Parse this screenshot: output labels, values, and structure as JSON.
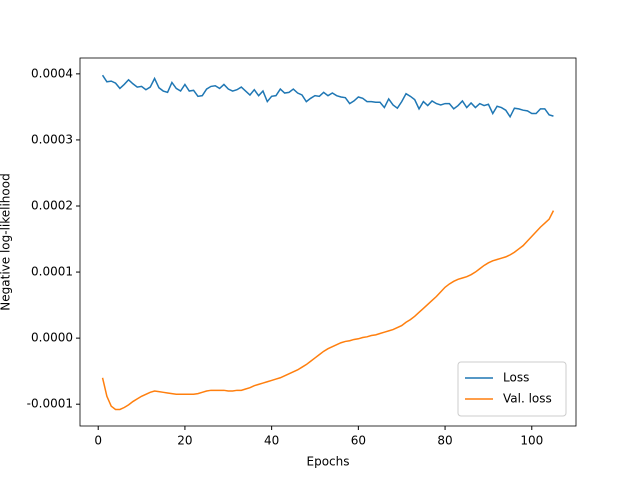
{
  "chart_data": {
    "type": "line",
    "xlabel": "Epochs",
    "ylabel": "Negative log-likelihood",
    "x": [
      1,
      2,
      3,
      4,
      5,
      6,
      7,
      8,
      9,
      10,
      11,
      12,
      13,
      14,
      15,
      16,
      17,
      18,
      19,
      20,
      21,
      22,
      23,
      24,
      25,
      26,
      27,
      28,
      29,
      30,
      31,
      32,
      33,
      34,
      35,
      36,
      37,
      38,
      39,
      40,
      41,
      42,
      43,
      44,
      45,
      46,
      47,
      48,
      49,
      50,
      51,
      52,
      53,
      54,
      55,
      56,
      57,
      58,
      59,
      60,
      61,
      62,
      63,
      64,
      65,
      66,
      67,
      68,
      69,
      70,
      71,
      72,
      73,
      74,
      75,
      76,
      77,
      78,
      79,
      80,
      81,
      82,
      83,
      84,
      85,
      86,
      87,
      88,
      89,
      90,
      91,
      92,
      93,
      94,
      95,
      96,
      97,
      98,
      99,
      100,
      101,
      102,
      103,
      104,
      105
    ],
    "series": [
      {
        "name": "Loss",
        "color": "#1f77b4",
        "values": [
          0.000398,
          0.000388,
          0.000389,
          0.000386,
          0.000378,
          0.000384,
          0.000391,
          0.000385,
          0.00038,
          0.000381,
          0.000376,
          0.00038,
          0.000393,
          0.000379,
          0.000374,
          0.000372,
          0.000387,
          0.000378,
          0.000374,
          0.000384,
          0.000374,
          0.000375,
          0.000366,
          0.000367,
          0.000377,
          0.000381,
          0.000382,
          0.000378,
          0.000384,
          0.000377,
          0.000374,
          0.000376,
          0.00038,
          0.000374,
          0.000368,
          0.000376,
          0.000367,
          0.000374,
          0.000358,
          0.000366,
          0.000367,
          0.000377,
          0.000371,
          0.000372,
          0.000377,
          0.000371,
          0.000368,
          0.000358,
          0.000363,
          0.000367,
          0.000366,
          0.000372,
          0.000367,
          0.000371,
          0.000367,
          0.000365,
          0.000364,
          0.000355,
          0.000359,
          0.000365,
          0.000363,
          0.000358,
          0.000358,
          0.000357,
          0.000357,
          0.000349,
          0.000362,
          0.000353,
          0.000348,
          0.000358,
          0.00037,
          0.000366,
          0.000361,
          0.000347,
          0.000358,
          0.000352,
          0.000359,
          0.000355,
          0.000353,
          0.000355,
          0.000355,
          0.000347,
          0.000352,
          0.000359,
          0.000349,
          0.000356,
          0.000349,
          0.000355,
          0.000352,
          0.000354,
          0.00034,
          0.000351,
          0.000349,
          0.000345,
          0.000335,
          0.000348,
          0.000347,
          0.000345,
          0.000344,
          0.00034,
          0.00034,
          0.000347,
          0.000347,
          0.000338,
          0.000336
        ]
      },
      {
        "name": "Val. loss",
        "color": "#ff7f0e",
        "values": [
          -6e-05,
          -8.8e-05,
          -0.000103,
          -0.000108,
          -0.000108,
          -0.000105,
          -0.000101,
          -9.6e-05,
          -9.2e-05,
          -8.8e-05,
          -8.5e-05,
          -8.2e-05,
          -8e-05,
          -8.1e-05,
          -8.2e-05,
          -8.3e-05,
          -8.4e-05,
          -8.5e-05,
          -8.5e-05,
          -8.5e-05,
          -8.5e-05,
          -8.5e-05,
          -8.4e-05,
          -8.2e-05,
          -8e-05,
          -7.9e-05,
          -7.9e-05,
          -7.9e-05,
          -7.9e-05,
          -8e-05,
          -8e-05,
          -7.9e-05,
          -7.9e-05,
          -7.7e-05,
          -7.5e-05,
          -7.2e-05,
          -7e-05,
          -6.8e-05,
          -6.6e-05,
          -6.4e-05,
          -6.2e-05,
          -6e-05,
          -5.7e-05,
          -5.4e-05,
          -5.1e-05,
          -4.8e-05,
          -4.4e-05,
          -4e-05,
          -3.5e-05,
          -3e-05,
          -2.5e-05,
          -2e-05,
          -1.6e-05,
          -1.3e-05,
          -1e-05,
          -7e-06,
          -5e-06,
          -4e-06,
          -2e-06,
          -1e-06,
          1e-06,
          2e-06,
          4e-06,
          5e-06,
          7e-06,
          9e-06,
          1.1e-05,
          1.3e-05,
          1.6e-05,
          1.9e-05,
          2.4e-05,
          2.8e-05,
          3.3e-05,
          3.9e-05,
          4.5e-05,
          5.1e-05,
          5.7e-05,
          6.3e-05,
          7e-05,
          7.7e-05,
          8.2e-05,
          8.6e-05,
          8.9e-05,
          9.1e-05,
          9.3e-05,
          9.6e-05,
          0.0001,
          0.000105,
          0.00011,
          0.000114,
          0.000117,
          0.000119,
          0.000121,
          0.000123,
          0.000126,
          0.00013,
          0.000135,
          0.00014,
          0.000147,
          0.000154,
          0.000161,
          0.000168,
          0.000174,
          0.00018,
          0.000193
        ]
      }
    ],
    "xlim": [
      -4.2,
      110.2
    ],
    "xticks": [
      0,
      20,
      40,
      60,
      80,
      100
    ],
    "ylim": [
      -0.000133,
      0.000424
    ],
    "yticks": [
      -0.0001,
      {
        "value": 0,
        "label": "0.0000"
      },
      0.0001,
      0.0002,
      0.0003,
      0.0004
    ],
    "grid": false,
    "legend": "lower right"
  }
}
